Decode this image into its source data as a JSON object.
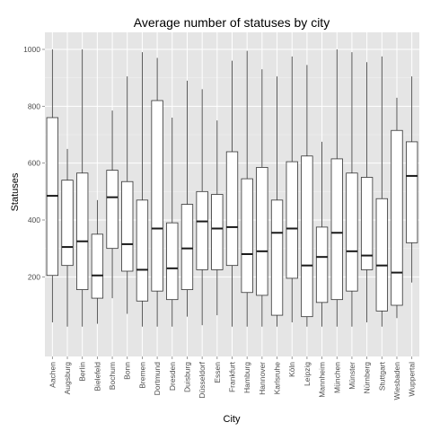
{
  "chart_data": {
    "type": "boxplot",
    "title": "Average number of statuses by city",
    "xlabel": "City",
    "ylabel": "Statuses",
    "ylim": [
      -80,
      1060
    ],
    "yticks": [
      200,
      400,
      600,
      800,
      1000
    ],
    "grid": true,
    "categories": [
      "Aachen",
      "Augsburg",
      "Berlin",
      "Bielefeld",
      "Bochum",
      "Bonn",
      "Bremen",
      "Dortmund",
      "Dresden",
      "Duisburg",
      "Düsseldorf",
      "Essen",
      "Frankfurt",
      "Hamburg",
      "Hannover",
      "Karlsruhe",
      "Köln",
      "Leipzig",
      "Mannheim",
      "München",
      "Münster",
      "Nürnberg",
      "Stuttgart",
      "Wiesbaden",
      "Wuppertal"
    ],
    "boxes": [
      {
        "min": 40,
        "q1": 205,
        "median": 485,
        "q3": 760,
        "max": 1000
      },
      {
        "min": 25,
        "q1": 240,
        "median": 305,
        "q3": 540,
        "max": 650
      },
      {
        "min": 25,
        "q1": 155,
        "median": 325,
        "q3": 565,
        "max": 1000
      },
      {
        "min": 35,
        "q1": 125,
        "median": 205,
        "q3": 350,
        "max": 470
      },
      {
        "min": 125,
        "q1": 300,
        "median": 480,
        "q3": 575,
        "max": 785
      },
      {
        "min": 70,
        "q1": 220,
        "median": 315,
        "q3": 535,
        "max": 905
      },
      {
        "min": 25,
        "q1": 115,
        "median": 225,
        "q3": 470,
        "max": 990
      },
      {
        "min": 25,
        "q1": 150,
        "median": 370,
        "q3": 820,
        "max": 970
      },
      {
        "min": 25,
        "q1": 120,
        "median": 230,
        "q3": 390,
        "max": 760
      },
      {
        "min": 60,
        "q1": 155,
        "median": 300,
        "q3": 455,
        "max": 890
      },
      {
        "min": 30,
        "q1": 225,
        "median": 395,
        "q3": 500,
        "max": 860
      },
      {
        "min": 65,
        "q1": 225,
        "median": 370,
        "q3": 490,
        "max": 750
      },
      {
        "min": 25,
        "q1": 240,
        "median": 375,
        "q3": 640,
        "max": 960
      },
      {
        "min": 25,
        "q1": 145,
        "median": 280,
        "q3": 545,
        "max": 995
      },
      {
        "min": 25,
        "q1": 135,
        "median": 290,
        "q3": 585,
        "max": 930
      },
      {
        "min": 25,
        "q1": 65,
        "median": 355,
        "q3": 470,
        "max": 905
      },
      {
        "min": 40,
        "q1": 195,
        "median": 370,
        "q3": 605,
        "max": 975
      },
      {
        "min": 25,
        "q1": 60,
        "median": 240,
        "q3": 625,
        "max": 945
      },
      {
        "min": 25,
        "q1": 110,
        "median": 270,
        "q3": 375,
        "max": 675
      },
      {
        "min": 25,
        "q1": 120,
        "median": 355,
        "q3": 615,
        "max": 1000
      },
      {
        "min": 25,
        "q1": 150,
        "median": 290,
        "q3": 565,
        "max": 990
      },
      {
        "min": 40,
        "q1": 225,
        "median": 275,
        "q3": 550,
        "max": 955
      },
      {
        "min": 25,
        "q1": 80,
        "median": 240,
        "q3": 475,
        "max": 975
      },
      {
        "min": 55,
        "q1": 100,
        "median": 215,
        "q3": 715,
        "max": 830
      },
      {
        "min": 180,
        "q1": 320,
        "median": 555,
        "q3": 675,
        "max": 905
      }
    ],
    "colors": {
      "panel_background": "#e5e5e5",
      "grid_major": "#ffffff",
      "grid_minor": "#f2f2f2",
      "box_fill": "#ffffff",
      "box_stroke": "#333333",
      "median": "#1a1a1a"
    }
  }
}
